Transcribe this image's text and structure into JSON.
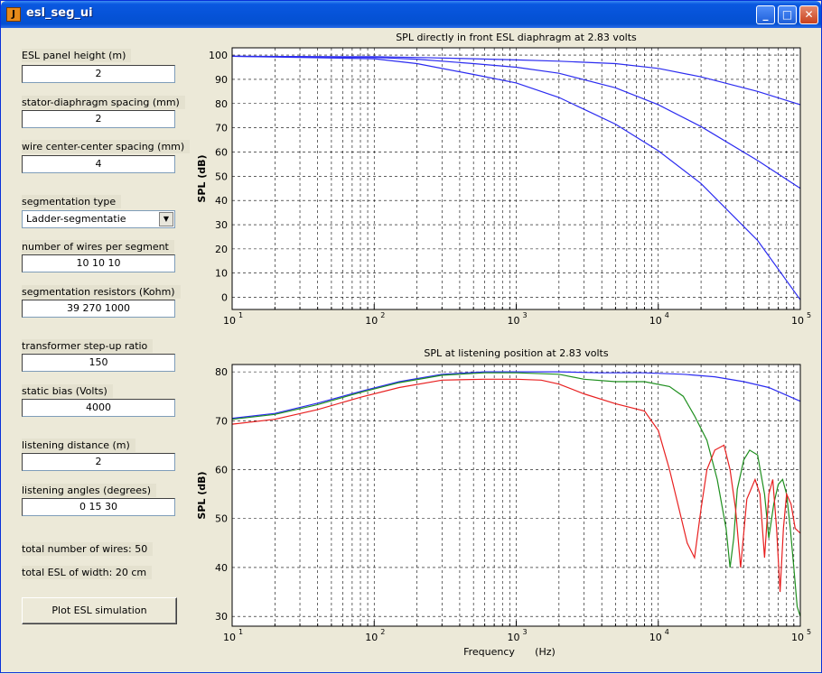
{
  "window": {
    "title": "esl_seg_ui",
    "icon": "matlab-icon",
    "buttons": [
      "minimize-button",
      "maximize-button",
      "close-button"
    ]
  },
  "form": {
    "panel_height_label": "ESL panel height (m)",
    "panel_height_value": "2",
    "spacing_label": "stator-diaphragm spacing (mm)",
    "spacing_value": "2",
    "wire_spacing_label": "wire center-center spacing (mm)",
    "wire_spacing_value": "4",
    "seg_type_label": "segmentation type",
    "seg_type_value": "Ladder-segmentatie",
    "wires_per_segment_label": "number of wires per segment",
    "wires_per_segment_value": "10 10 10",
    "resistors_label": "segmentation resistors (Kohm)",
    "resistors_value": "39 270 1000",
    "stepup_label": "transformer step-up ratio",
    "stepup_value": "150",
    "bias_label": "static bias (Volts)",
    "bias_value": "4000",
    "distance_label": "listening distance (m)",
    "distance_value": "2",
    "angles_label": "listening angles (degrees)",
    "angles_value": "0 15 30",
    "total_wires_text": "total number of wires:  50",
    "total_width_text": "total ESL of width:  20 cm",
    "plot_button": "Plot ESL simulation"
  },
  "colors": {
    "blue": "#2B2BF0",
    "green": "#1F8F1F",
    "red": "#E82020"
  },
  "chart_data": [
    {
      "type": "line",
      "title": "SPL directly in front ESL diaphragm at 2.83 volts",
      "ylabel": "SPL (dB)",
      "xlabel": "",
      "xscale": "log",
      "xlim": [
        10,
        100000
      ],
      "ylim": [
        -5,
        103
      ],
      "yticks": [
        100,
        90,
        80,
        70,
        60,
        50,
        40,
        30,
        20,
        10,
        0
      ],
      "ytick_labels": [
        "100",
        "90",
        "80",
        "70",
        "60",
        "50",
        "40",
        "30",
        "20",
        "10",
        "0"
      ],
      "xticks": [
        10,
        100,
        1000,
        10000,
        100000
      ],
      "xtick_bases": [
        "10",
        "10",
        "10",
        "10",
        "10"
      ],
      "xtick_exps": [
        "1",
        "2",
        "3",
        "4",
        "5"
      ],
      "grid": true,
      "series": [
        {
          "color": "#2B2BF0",
          "x": [
            10,
            100,
            200,
            500,
            1000,
            2000,
            5000,
            10000,
            20000,
            50000,
            100000
          ],
          "y": [
            99.5,
            99.3,
            99,
            98.5,
            98,
            97.5,
            96.5,
            94.5,
            91,
            85,
            79.5
          ]
        },
        {
          "color": "#2B2BF0",
          "x": [
            10,
            100,
            200,
            500,
            1000,
            2000,
            5000,
            10000,
            20000,
            50000,
            100000
          ],
          "y": [
            99.5,
            99,
            98.3,
            96.5,
            95,
            92.5,
            86.5,
            79.5,
            70.5,
            56.5,
            45
          ]
        },
        {
          "color": "#2B2BF0",
          "x": [
            10,
            100,
            200,
            500,
            1000,
            2000,
            5000,
            10000,
            20000,
            50000,
            100000
          ],
          "y": [
            99.5,
            98.5,
            96.5,
            92,
            88.5,
            82.5,
            71.5,
            60.5,
            47,
            23.5,
            -1
          ]
        }
      ]
    },
    {
      "type": "line",
      "title": "SPL at listening position at 2.83 volts",
      "ylabel": "SPL (dB)",
      "xlabel": "Frequency",
      "xlabel_unit": "(Hz)",
      "xscale": "log",
      "xlim": [
        10,
        100000
      ],
      "ylim": [
        28,
        81.5
      ],
      "yticks": [
        80,
        70,
        60,
        50,
        40,
        30
      ],
      "ytick_labels": [
        "80",
        "70",
        "60",
        "50",
        "40",
        "30"
      ],
      "xticks": [
        10,
        100,
        1000,
        10000,
        100000
      ],
      "xtick_bases": [
        "10",
        "10",
        "10",
        "10",
        "10"
      ],
      "xtick_exps": [
        "1",
        "2",
        "3",
        "4",
        "5"
      ],
      "grid": true,
      "series": [
        {
          "color": "#2B2BF0",
          "x": [
            10,
            20,
            40,
            80,
            150,
            300,
            600,
            1000,
            2000,
            4000,
            8000,
            15000,
            25000,
            40000,
            60000,
            100000
          ],
          "y": [
            70.5,
            71.5,
            73.6,
            76,
            78,
            79.5,
            80,
            80,
            80,
            79.8,
            79.8,
            79.5,
            79,
            78,
            76.8,
            74
          ]
        },
        {
          "color": "#1F8F1F",
          "x": [
            10,
            20,
            40,
            80,
            150,
            300,
            600,
            1000,
            2000,
            3000,
            5000,
            8000,
            12000,
            15000,
            18000,
            22000,
            26000,
            30000,
            32000,
            34000,
            36000,
            40000,
            44000,
            50000,
            56000,
            60000,
            65000,
            70000,
            75000,
            80000,
            85000,
            90000,
            95000,
            100000
          ],
          "y": [
            70.3,
            71.3,
            73.3,
            75.8,
            77.8,
            79.3,
            79.8,
            79.8,
            79.5,
            78.5,
            78,
            78,
            77,
            75,
            71,
            66,
            58,
            48,
            40,
            46,
            56,
            62,
            64,
            63,
            55,
            46,
            53,
            57,
            58,
            55,
            48,
            40,
            32,
            30
          ]
        },
        {
          "color": "#E82020",
          "x": [
            10,
            20,
            40,
            80,
            150,
            300,
            600,
            1000,
            1500,
            2000,
            3000,
            5000,
            8000,
            10000,
            12000,
            14000,
            16000,
            18000,
            20000,
            22000,
            25000,
            29000,
            32000,
            35000,
            38000,
            42000,
            48000,
            52000,
            56000,
            60000,
            64000,
            68000,
            72000,
            76000,
            80000,
            86000,
            92000,
            100000
          ],
          "y": [
            69.3,
            70.3,
            72.3,
            74.8,
            76.8,
            78.3,
            78.5,
            78.5,
            78.3,
            77.5,
            75.5,
            73.5,
            72,
            68,
            60,
            52,
            45,
            42,
            52,
            60,
            64,
            65,
            60,
            52,
            40,
            54,
            58,
            55,
            42,
            55,
            58,
            48,
            35,
            48,
            55,
            53,
            48,
            47
          ]
        }
      ]
    }
  ]
}
